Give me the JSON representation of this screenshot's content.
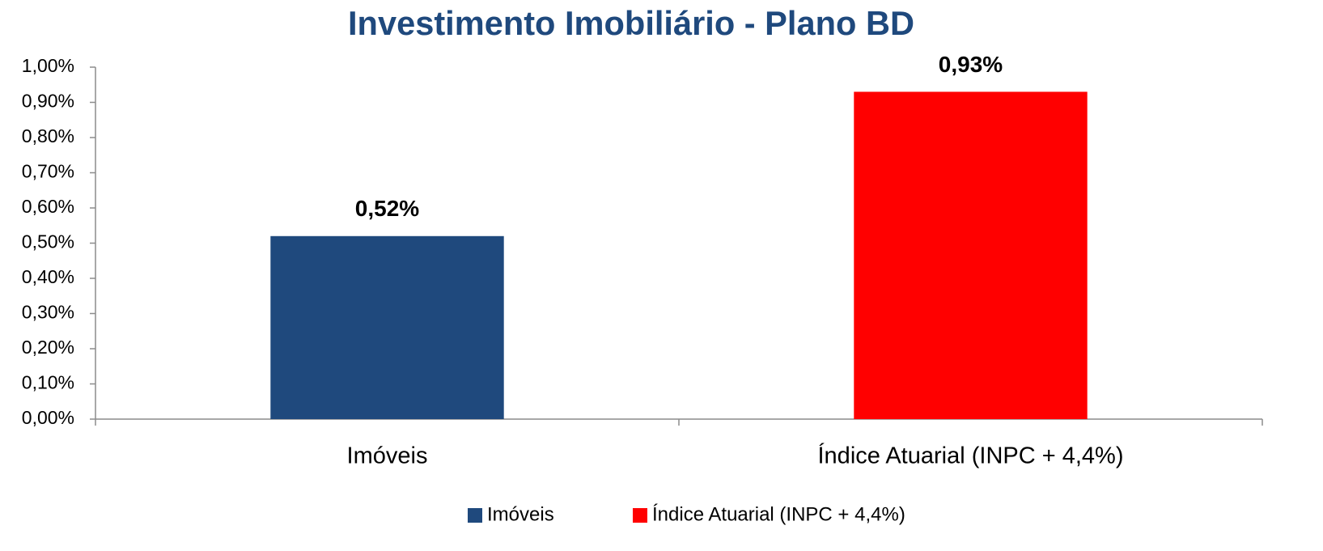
{
  "chart_data": {
    "type": "bar",
    "title": "Investimento Imobiliário - Plano BD",
    "categories": [
      "Imóveis",
      "Índice Atuarial (INPC + 4,4%)"
    ],
    "values": [
      0.52,
      0.93
    ],
    "value_labels": [
      "0,52%",
      "0,93%"
    ],
    "colors": [
      "#1f497d",
      "#ff0000"
    ],
    "ylim": [
      0,
      1
    ],
    "yticks": [
      {
        "value": 0,
        "label": "0,00%"
      },
      {
        "value": 0.1,
        "label": "0,10%"
      },
      {
        "value": 0.2,
        "label": "0,20%"
      },
      {
        "value": 0.3,
        "label": "0,30%"
      },
      {
        "value": 0.4,
        "label": "0,40%"
      },
      {
        "value": 0.5,
        "label": "0,50%"
      },
      {
        "value": 0.6,
        "label": "0,60%"
      },
      {
        "value": 0.7,
        "label": "0,70%"
      },
      {
        "value": 0.8,
        "label": "0,80%"
      },
      {
        "value": 0.9,
        "label": "0,90%"
      },
      {
        "value": 1,
        "label": "1,00%"
      }
    ],
    "grid": false,
    "legend": "bottom"
  }
}
